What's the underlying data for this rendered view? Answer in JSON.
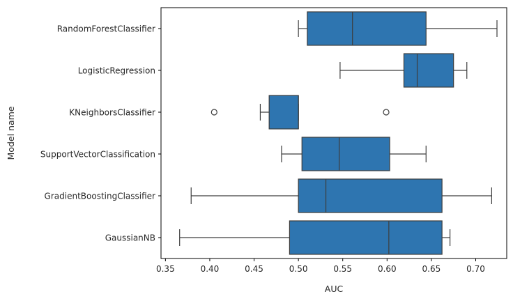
{
  "chart_data": {
    "type": "boxplot",
    "orientation": "horizontal",
    "title": "",
    "xlabel": "AUC",
    "ylabel": "Model name",
    "xlim": [
      0.345,
      0.735
    ],
    "xticks": [
      0.35,
      0.4,
      0.45,
      0.5,
      0.55,
      0.6,
      0.65,
      0.7
    ],
    "xtick_labels": [
      "0.35",
      "0.40",
      "0.45",
      "0.50",
      "0.55",
      "0.60",
      "0.65",
      "0.70"
    ],
    "grid": false,
    "box_color": "#2e75b0",
    "line_color": "#3d3d3d",
    "series": [
      {
        "name": "RandomForestClassifier",
        "whisker_low": 0.5,
        "q1": 0.51,
        "median": 0.561,
        "q3": 0.644,
        "whisker_high": 0.724,
        "outliers": []
      },
      {
        "name": "LogisticRegression",
        "whisker_low": 0.547,
        "q1": 0.619,
        "median": 0.634,
        "q3": 0.675,
        "whisker_high": 0.69,
        "outliers": []
      },
      {
        "name": "KNeighborsClassifier",
        "whisker_low": 0.457,
        "q1": 0.467,
        "median": 0.5,
        "q3": 0.5,
        "whisker_high": 0.5,
        "outliers": [
          0.405,
          0.599
        ]
      },
      {
        "name": "SupportVectorClassification",
        "whisker_low": 0.481,
        "q1": 0.504,
        "median": 0.546,
        "q3": 0.603,
        "whisker_high": 0.644,
        "outliers": []
      },
      {
        "name": "GradientBoostingClassifier",
        "whisker_low": 0.379,
        "q1": 0.5,
        "median": 0.531,
        "q3": 0.662,
        "whisker_high": 0.718,
        "outliers": []
      },
      {
        "name": "GaussianNB",
        "whisker_low": 0.366,
        "q1": 0.49,
        "median": 0.602,
        "q3": 0.662,
        "whisker_high": 0.671,
        "outliers": []
      }
    ]
  }
}
